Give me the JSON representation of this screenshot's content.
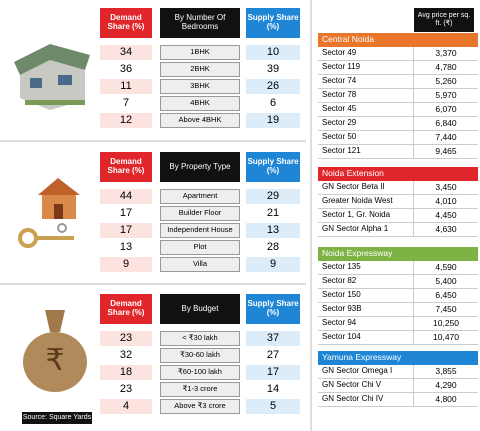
{
  "left": {
    "tables": [
      {
        "demand_header": "Demand Share (%)",
        "category_header": "By Number Of Bedrooms",
        "supply_header": "Supply Share (%)",
        "rows": [
          {
            "demand": 34,
            "label": "1BHK",
            "supply": 10
          },
          {
            "demand": 36,
            "label": "2BHK",
            "supply": 39
          },
          {
            "demand": 11,
            "label": "3BHK",
            "supply": 26
          },
          {
            "demand": 7,
            "label": "4BHK",
            "supply": 6
          },
          {
            "demand": 12,
            "label": "Above 4BHK",
            "supply": 19
          }
        ]
      },
      {
        "demand_header": "Demand Share (%)",
        "category_header": "By Property Type",
        "supply_header": "Supply Share (%)",
        "rows": [
          {
            "demand": 44,
            "label": "Apartment",
            "supply": 29
          },
          {
            "demand": 17,
            "label": "Builder Floor",
            "supply": 21
          },
          {
            "demand": 17,
            "label": "Independent House",
            "supply": 13
          },
          {
            "demand": 13,
            "label": "Plot",
            "supply": 28
          },
          {
            "demand": 9,
            "label": "Villa",
            "supply": 9
          }
        ]
      },
      {
        "demand_header": "Demand Share (%)",
        "category_header": "By Budget",
        "supply_header": "Supply Share (%)",
        "rows": [
          {
            "demand": 23,
            "label": "< ₹30 lakh",
            "supply": 37
          },
          {
            "demand": 32,
            "label": "₹30-60 lakh",
            "supply": 27
          },
          {
            "demand": 18,
            "label": "₹60-100 lakh",
            "supply": 17
          },
          {
            "demand": 23,
            "label": "₹1-3 crore",
            "supply": 14
          },
          {
            "demand": 4,
            "label": "Above ₹3 crore",
            "supply": 5
          }
        ]
      }
    ],
    "source": "Source: Square Yards"
  },
  "right": {
    "price_header": "Avg price per sq. ft. (₹)",
    "regions": [
      {
        "name": "Central Noida",
        "rows": [
          {
            "sector": "Sector 49",
            "price": "3,370"
          },
          {
            "sector": "Sector 119",
            "price": "4,780"
          },
          {
            "sector": "Sector 74",
            "price": "5,260"
          },
          {
            "sector": "Sector 78",
            "price": "5,970"
          },
          {
            "sector": "Sector 45",
            "price": "6,070"
          },
          {
            "sector": "Sector 29",
            "price": "6,840"
          },
          {
            "sector": "Sector 50",
            "price": "7,440"
          },
          {
            "sector": "Sector 121",
            "price": "9,465"
          }
        ]
      },
      {
        "name": "Noida Extension",
        "rows": [
          {
            "sector": "GN Sector Beta II",
            "price": "3,450"
          },
          {
            "sector": "Greater Noida West",
            "price": "4,010"
          },
          {
            "sector": "Sector 1, Gr. Noida",
            "price": "4,450"
          },
          {
            "sector": "GN Sector Alpha 1",
            "price": "4,630"
          }
        ]
      },
      {
        "name": "Noida Expressway",
        "rows": [
          {
            "sector": "Sector 135",
            "price": "4,590"
          },
          {
            "sector": "Sector 82",
            "price": "5,400"
          },
          {
            "sector": "Sector 150",
            "price": "6,450"
          },
          {
            "sector": "Sector 93B",
            "price": "7,450"
          },
          {
            "sector": "Sector 94",
            "price": "10,250"
          },
          {
            "sector": "Sector 104",
            "price": "10,470"
          }
        ]
      },
      {
        "name": "Yamuna Expressway",
        "rows": [
          {
            "sector": "GN Sector Omega I",
            "price": "3,855"
          },
          {
            "sector": "GN Sector Chi V",
            "price": "4,290"
          },
          {
            "sector": "GN Sector Chi IV",
            "price": "4,800"
          }
        ]
      }
    ]
  }
}
